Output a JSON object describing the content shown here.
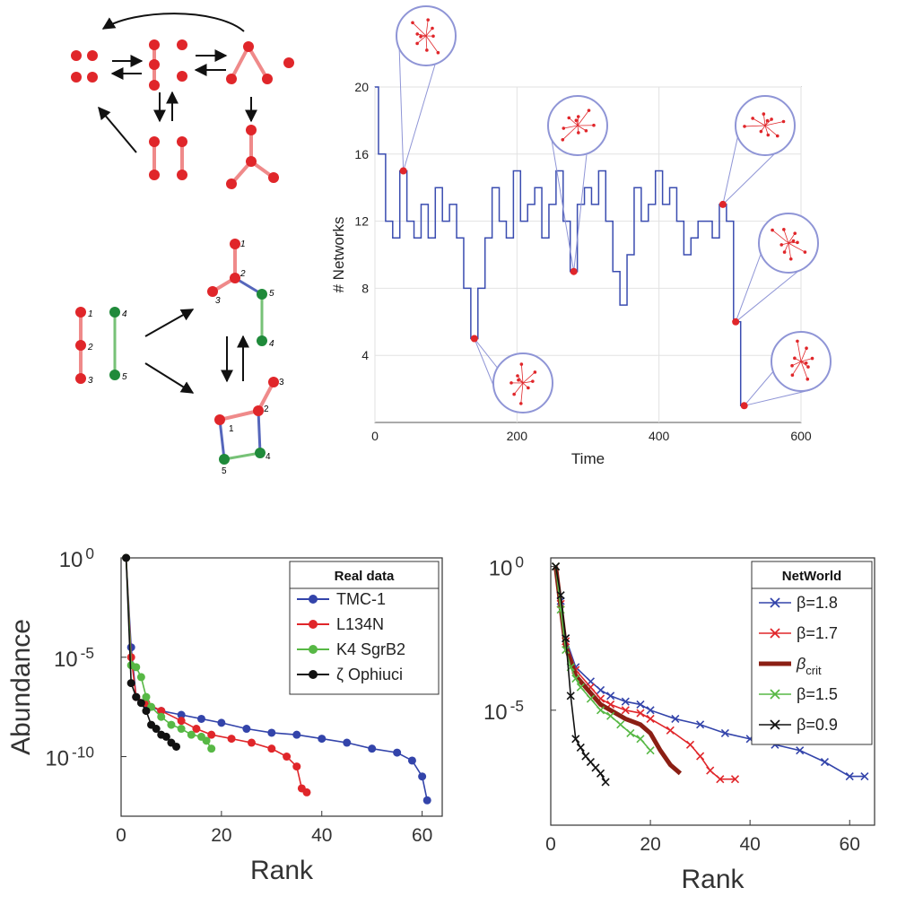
{
  "colors": {
    "red": "#e0262a",
    "red_edge": "#ef8a8a",
    "green": "#1f8a3a",
    "green_edge": "#77c277",
    "blue": "#3344aa",
    "blue_line": "#3a4cb0",
    "light_blue": "#8f95d6"
  },
  "diagram": {
    "bottom_labels": [
      "1",
      "2",
      "3",
      "4",
      "5"
    ]
  },
  "chart_data": [
    {
      "type": "line",
      "panel": "time-series",
      "title": "",
      "xlabel": "Time",
      "ylabel": "# Networks",
      "xlim": [
        0,
        600
      ],
      "ylim": [
        0,
        20
      ],
      "xticks": [
        "0",
        "200",
        "400",
        "600"
      ],
      "yticks": [
        "4",
        "8",
        "12",
        "16",
        "20"
      ],
      "grid": true,
      "series": [
        {
          "x": [
            0,
            10,
            20,
            30,
            40,
            50,
            60,
            70,
            80,
            90,
            100,
            110,
            120,
            130,
            140,
            150,
            160,
            170,
            180,
            190,
            200,
            210,
            220,
            230,
            240,
            250,
            260,
            270,
            280,
            290,
            300,
            310,
            320,
            330,
            340,
            350,
            360,
            370,
            380,
            390,
            400,
            410,
            420,
            430,
            440,
            450,
            460,
            470,
            480,
            490,
            500,
            510,
            520
          ],
          "values": [
            20,
            16,
            12,
            11,
            15,
            12,
            11,
            13,
            11,
            14,
            12,
            13,
            11,
            8,
            5,
            8,
            11,
            14,
            12,
            11,
            15,
            12,
            13,
            14,
            11,
            13,
            15,
            12,
            9,
            13,
            14,
            13,
            15,
            12,
            9,
            7,
            10,
            14,
            12,
            13,
            15,
            13,
            14,
            12,
            10,
            11,
            12,
            12,
            11,
            13,
            12,
            6,
            1
          ]
        }
      ],
      "highlight_points": [
        {
          "x": 40,
          "y": 15
        },
        {
          "x": 140,
          "y": 5
        },
        {
          "x": 280,
          "y": 9
        },
        {
          "x": 490,
          "y": 13
        },
        {
          "x": 508,
          "y": 6
        },
        {
          "x": 520,
          "y": 1
        }
      ]
    },
    {
      "type": "scatter",
      "panel": "real-data",
      "xlabel": "Rank",
      "ylabel": "Abundance",
      "log_y": true,
      "xlim": [
        0,
        64
      ],
      "ylim": [
        -13,
        0
      ],
      "xticks": [
        "0",
        "20",
        "40",
        "60"
      ],
      "yticks": [
        {
          "base": "10",
          "exp": "0",
          "value": 0
        },
        {
          "base": "10",
          "exp": "-5",
          "value": -5
        },
        {
          "base": "10",
          "exp": "-10",
          "value": -10
        }
      ],
      "legend_title": "Real data",
      "legend_position": "top-right",
      "series": [
        {
          "name": "TMC-1",
          "color": "#3344aa",
          "x": [
            1,
            2,
            3,
            5,
            8,
            12,
            16,
            20,
            25,
            30,
            35,
            40,
            45,
            50,
            55,
            58,
            60,
            61
          ],
          "values": [
            0,
            -4.5,
            -7,
            -7.4,
            -7.7,
            -7.9,
            -8.1,
            -8.3,
            -8.6,
            -8.8,
            -8.9,
            -9.1,
            -9.3,
            -9.6,
            -9.8,
            -10.2,
            -11,
            -12.2
          ]
        },
        {
          "name": "L134N",
          "color": "#e0262a",
          "x": [
            1,
            2,
            3,
            5,
            8,
            12,
            15,
            18,
            22,
            26,
            30,
            33,
            35,
            36,
            37
          ],
          "values": [
            0,
            -5,
            -7,
            -7.3,
            -7.7,
            -8.2,
            -8.6,
            -8.9,
            -9.1,
            -9.3,
            -9.6,
            -10,
            -10.5,
            -11.6,
            -11.8
          ]
        },
        {
          "name": "K4 SgrB2",
          "color": "#57b845",
          "x": [
            1,
            2,
            3,
            4,
            5,
            6,
            8,
            10,
            12,
            14,
            16,
            17,
            18
          ],
          "values": [
            0,
            -5.4,
            -5.5,
            -6,
            -7,
            -7.5,
            -8,
            -8.4,
            -8.6,
            -8.9,
            -9,
            -9.2,
            -9.6
          ]
        },
        {
          "name": "ζ Ophiuci",
          "color": "#111111",
          "x": [
            1,
            2,
            3,
            4,
            5,
            6,
            7,
            8,
            9,
            10,
            11
          ],
          "values": [
            0,
            -6.3,
            -7,
            -7.3,
            -7.7,
            -8.4,
            -8.6,
            -8.9,
            -9,
            -9.3,
            -9.5
          ]
        }
      ]
    },
    {
      "type": "line",
      "panel": "networld",
      "xlabel": "Rank",
      "ylabel": "",
      "log_y": true,
      "xlim": [
        0,
        65
      ],
      "ylim": [
        -9,
        0.3
      ],
      "xticks": [
        "0",
        "20",
        "40",
        "60"
      ],
      "yticks": [
        {
          "base": "10",
          "exp": "0",
          "value": 0
        },
        {
          "base": "10",
          "exp": "-5",
          "value": -5
        }
      ],
      "legend_title": "NetWorld",
      "legend_position": "top-right",
      "series": [
        {
          "name": "β=1.8",
          "color": "#3344aa",
          "marker": "x",
          "x": [
            1,
            2,
            3,
            5,
            8,
            10,
            12,
            15,
            18,
            20,
            25,
            30,
            35,
            40,
            45,
            50,
            55,
            60,
            63
          ],
          "values": [
            0,
            -1.2,
            -2.5,
            -3.5,
            -4,
            -4.3,
            -4.5,
            -4.7,
            -4.8,
            -5,
            -5.3,
            -5.5,
            -5.8,
            -6,
            -6.2,
            -6.4,
            -6.8,
            -7.3,
            -7.3
          ]
        },
        {
          "name": "β=1.7",
          "color": "#e0262a",
          "marker": "x",
          "x": [
            1,
            2,
            3,
            5,
            8,
            10,
            12,
            15,
            18,
            20,
            24,
            28,
            30,
            32,
            34,
            37
          ],
          "values": [
            0,
            -1.3,
            -2.6,
            -3.6,
            -4.2,
            -4.6,
            -4.8,
            -5,
            -5.1,
            -5.3,
            -5.7,
            -6.2,
            -6.6,
            -7.1,
            -7.4,
            -7.4
          ]
        },
        {
          "name": "β",
          "sub": "crit",
          "color": "#8b1f14",
          "marker": "none",
          "x": [
            1,
            2,
            3,
            5,
            8,
            10,
            12,
            15,
            18,
            20,
            22,
            24,
            26
          ],
          "values": [
            0,
            -1.4,
            -2.8,
            -3.8,
            -4.4,
            -4.8,
            -5,
            -5.3,
            -5.5,
            -5.8,
            -6.4,
            -6.9,
            -7.2
          ]
        },
        {
          "name": "β=1.5",
          "color": "#57b845",
          "marker": "x",
          "x": [
            1,
            2,
            3,
            4,
            5,
            6,
            8,
            10,
            12,
            14,
            16,
            18,
            20
          ],
          "values": [
            0,
            -1.5,
            -2.9,
            -3.5,
            -3.9,
            -4.2,
            -4.6,
            -5,
            -5.2,
            -5.5,
            -5.8,
            -6,
            -6.4
          ]
        },
        {
          "name": "β=0.9",
          "color": "#111111",
          "marker": "x",
          "x": [
            1,
            2,
            3,
            4,
            5,
            6,
            7,
            8,
            9,
            10,
            11
          ],
          "values": [
            0,
            -1,
            -2.5,
            -4.5,
            -6,
            -6.3,
            -6.6,
            -6.8,
            -7,
            -7.2,
            -7.5
          ]
        }
      ]
    }
  ]
}
